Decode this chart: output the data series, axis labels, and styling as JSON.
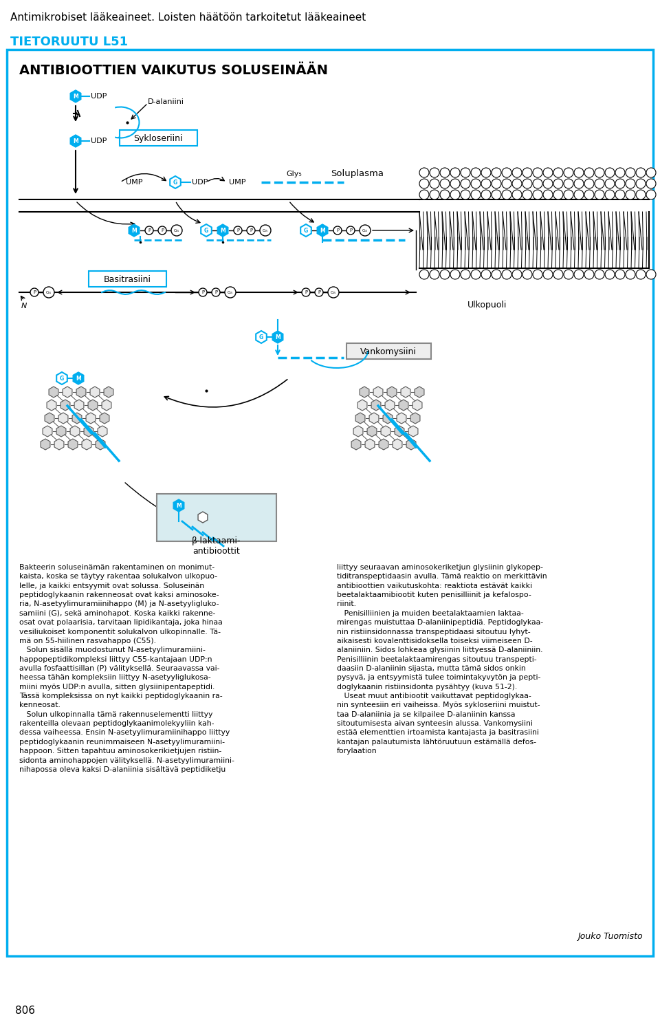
{
  "title_line1": "Antimikrobiset lääkeaineet. Loisten häätöön tarkoitetut lääkeaineet",
  "box_title": "TIETORUUTU L51",
  "diagram_title": "ANTIBIOOTTIEN VAIKUTUS SOLUSEINÄÄN",
  "cyan_color": "#00AEEF",
  "bg_color": "#FFFFFF",
  "text_color": "#000000",
  "page_number": "806",
  "D_alaniini": "D-alaniini",
  "Sykloseriini": "Sykloseriini",
  "Soluplasma": "Soluplasma",
  "Basitrasiini": "Basitrasiini",
  "Ulkopuoli": "Ulkopuoli",
  "Vankomysiini": "Vankomysiini",
  "beta_laktaami": "β-laktaami-\nantibioottit",
  "N_label": "N",
  "body_text_left": "Bakteerin soluseinämän rakentaminen on monimut-\nkaista, koska se täytyy rakentaa solukalvon ulkopuo-\nlelle, ja kaikki entsyymit ovat solussa. Soluseinän\npeptidoglykaanin rakenneosat ovat kaksi aminosoke-\nria, N-asetyylimuramiinihappo (M) ja N-asetyyligluko-\nsamiini (G), sekä aminohapot. Koska kaikki rakenne-\nosat ovat polaarisia, tarvitaan lipidikantaja, joka hinaa\nvesiliukoiset komponentit solukalvon ulkopinnalle. Tä-\nmä on 55-hiilinen rasvahappo (C55).\n   Solun sisällä muodostunut N-asetyylimuramiini-\nhappopeptidikompleksi liittyy C55-kantajaan UDP:n\navulla fosfaattisillan (P) välityksellä. Seuraavassa vai-\nheessa tähän kompleksiin liittyy N-asetyyliglukosa-\nmiini myös UDP:n avulla, sitten glysiinipentapeptidi.\nTässä kompleksissa on nyt kaikki peptidoglykaanin ra-\nkenneosat.\n   Solun ulkopinnalla tämä rakennuselementti liittyy\nrakenteilla olevaan peptidoglykaanimolekyyliin kah-\ndessa vaiheessa. Ensin N-asetyylimuramiinihappo liittyy\npeptidoglykaanin reunimmaiseen N-asetyylimuramiini-\nhappoon. Sitten tapahtuu aminosokerikietjujen ristiin-\nsidonta aminohappojen välityksellä. N-asetyylimuramiini-\nnihapossa oleva kaksi D-alaniinia sisältävä peptidiketju",
  "body_text_right": "liittyy seuraavan aminosokeriketjun glysiinin glykopep-\ntiditranspeptidaasin avulla. Tämä reaktio on merkittävin\nantibioottien vaikutuskohta: reaktiota estävät kaikki\nbeetalaktaamibiootit kuten penisilliinit ja kefalospo-\nriinit.\n   Penisilliinien ja muiden beetalaktaamien laktaa-\nmirengas muistuttaa D-alaniinipeptidiä. Peptidoglykaa-\nnin ristiinsidonnassa transpeptidaasi sitoutuu lyhyt-\naikaisesti kovalenttisidoksella toiseksi viimeiseen D-\nalaniiniin. Sidos lohkeaa glysiinin liittyessä D-alaniiniin.\nPenisilliinin beetalaktaamirengas sitoutuu transpepti-\ndaasiin D-alaniinin sijasta, mutta tämä sidos onkin\npysyvä, ja entsyymistä tulee toimintakyvytön ja pepti-\ndoglykaanin ristiinsidonta pysähtyy (kuva 51-2).\n   Useat muut antibiootit vaikuttavat peptidoglykaa-\nnin synteesiin eri vaiheissa. Myös sykloseriini muistut-\ntaa D-alaniinia ja se kilpailee D-alaniinin kanssa\nsitoutumisesta aivan synteesin alussa. Vankomysiini\nestää elementtien irtoamista kantajasta ja basitrasiini\nkantajan palautumista lähtöruutuun estämällä defos-\nforylaation",
  "author": "Jouko Tuomisto"
}
